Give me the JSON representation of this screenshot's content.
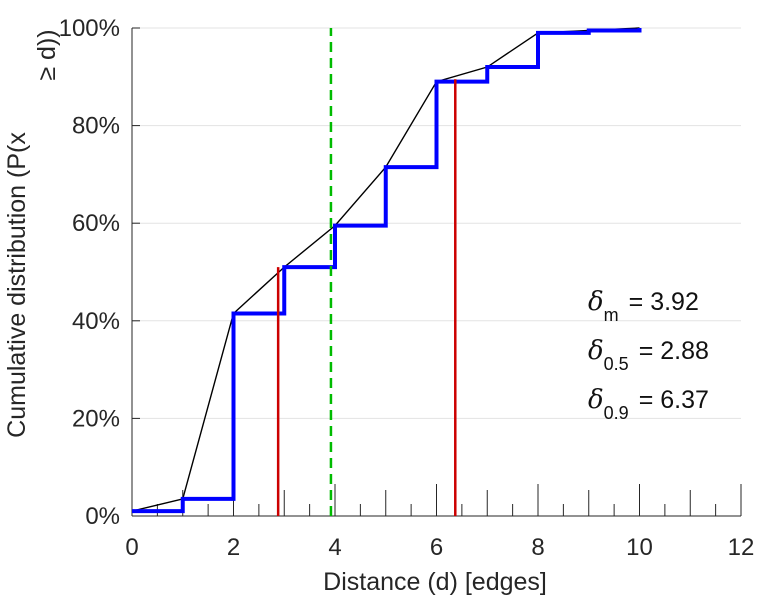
{
  "chart_data": {
    "type": "line",
    "title": "",
    "xlabel": "Distance (d) [edges]",
    "ylabel": "Cumulative distribution (P(x ≥ d))",
    "ylabel_lines": [
      "Cumulative distribution (P(x",
      "≥ d))"
    ],
    "xlim": [
      0,
      12
    ],
    "ylim": [
      0,
      100
    ],
    "x_ticks": [
      0,
      2,
      4,
      6,
      8,
      10,
      12
    ],
    "x_tick_labels": [
      "0",
      "2",
      "4",
      "6",
      "8",
      "10",
      "12"
    ],
    "y_ticks": [
      0,
      20,
      40,
      60,
      80,
      100
    ],
    "y_tick_labels": [
      "0%",
      "20%",
      "40%",
      "60%",
      "80%",
      "100%"
    ],
    "grid": "horizontal",
    "series": [
      {
        "style": "line",
        "color": "#000000",
        "x": [
          0,
          1,
          2,
          3,
          4,
          5,
          6,
          7,
          8,
          9,
          10
        ],
        "y": [
          1,
          3.5,
          41.5,
          51,
          59.5,
          71.5,
          89,
          92,
          99,
          99.5,
          100
        ]
      },
      {
        "style": "step",
        "color": "#0000ff",
        "x": [
          0,
          1,
          2,
          3,
          4,
          5,
          6,
          7,
          8,
          9,
          10
        ],
        "y": [
          1,
          3.5,
          41.5,
          51,
          59.5,
          71.5,
          89,
          92,
          99,
          99.5,
          100
        ]
      }
    ],
    "reference_lines": [
      {
        "x": 2.88,
        "y_top": 51,
        "color": "#cc0000",
        "style": "solid"
      },
      {
        "x": 6.37,
        "y_top": 89.5,
        "color": "#cc0000",
        "style": "solid"
      },
      {
        "x": 3.92,
        "y_top": 100,
        "color": "#00bb00",
        "style": "dashed"
      }
    ],
    "annotations": [
      {
        "symbol": "δ",
        "sub": "m",
        "text": "= 3.92"
      },
      {
        "symbol": "δ",
        "sub": "0.5",
        "text": "= 2.88"
      },
      {
        "symbol": "δ",
        "sub": "0.9",
        "text": "= 6.37"
      }
    ]
  }
}
